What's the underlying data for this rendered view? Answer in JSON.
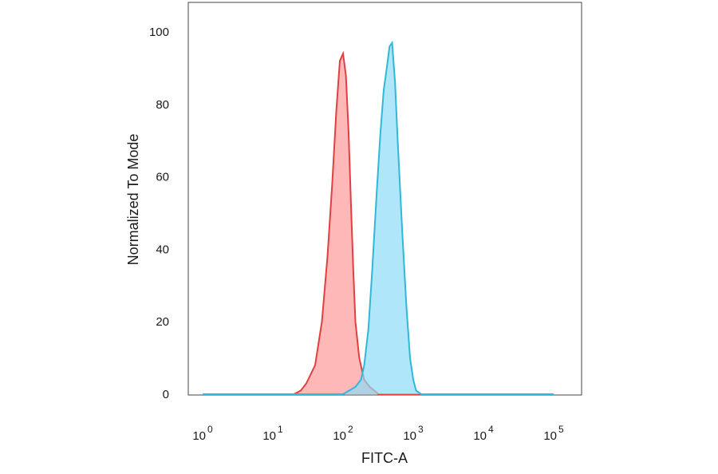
{
  "chart_data": {
    "type": "area",
    "xlabel": "FITC-A",
    "ylabel": "Normalized To Mode",
    "x_scale": "log10",
    "xlim": [
      1,
      100000
    ],
    "ylim": [
      0,
      105
    ],
    "grid": false,
    "legend": "none",
    "x_ticks": [
      {
        "base": "10",
        "exp": "0",
        "value": 1
      },
      {
        "base": "10",
        "exp": "1",
        "value": 10
      },
      {
        "base": "10",
        "exp": "2",
        "value": 100
      },
      {
        "base": "10",
        "exp": "3",
        "value": 1000
      },
      {
        "base": "10",
        "exp": "4",
        "value": 10000
      },
      {
        "base": "10",
        "exp": "5",
        "value": 100000
      }
    ],
    "y_ticks": [
      0,
      20,
      40,
      60,
      80,
      100
    ],
    "series": [
      {
        "color": "#e04040",
        "fill": "#ff9a9a",
        "x": [
          1,
          20,
          25,
          30,
          40,
          50,
          60,
          70,
          80,
          90,
          100,
          110,
          120,
          130,
          140,
          150,
          170,
          200,
          240,
          280,
          320,
          100000
        ],
        "y": [
          0,
          0,
          1,
          3,
          8,
          20,
          38,
          58,
          78,
          92,
          94,
          88,
          72,
          52,
          34,
          20,
          10,
          4,
          2,
          1,
          0,
          0
        ]
      },
      {
        "color": "#30b8d8",
        "fill": "#8fdcf6",
        "x": [
          1,
          100,
          150,
          180,
          200,
          230,
          260,
          300,
          340,
          380,
          420,
          460,
          500,
          550,
          600,
          700,
          800,
          900,
          1000,
          1100,
          1300,
          100000
        ],
        "y": [
          0,
          0,
          2,
          4,
          8,
          18,
          34,
          55,
          72,
          84,
          90,
          96,
          97,
          86,
          70,
          44,
          24,
          10,
          4,
          1,
          0,
          0
        ]
      }
    ]
  }
}
